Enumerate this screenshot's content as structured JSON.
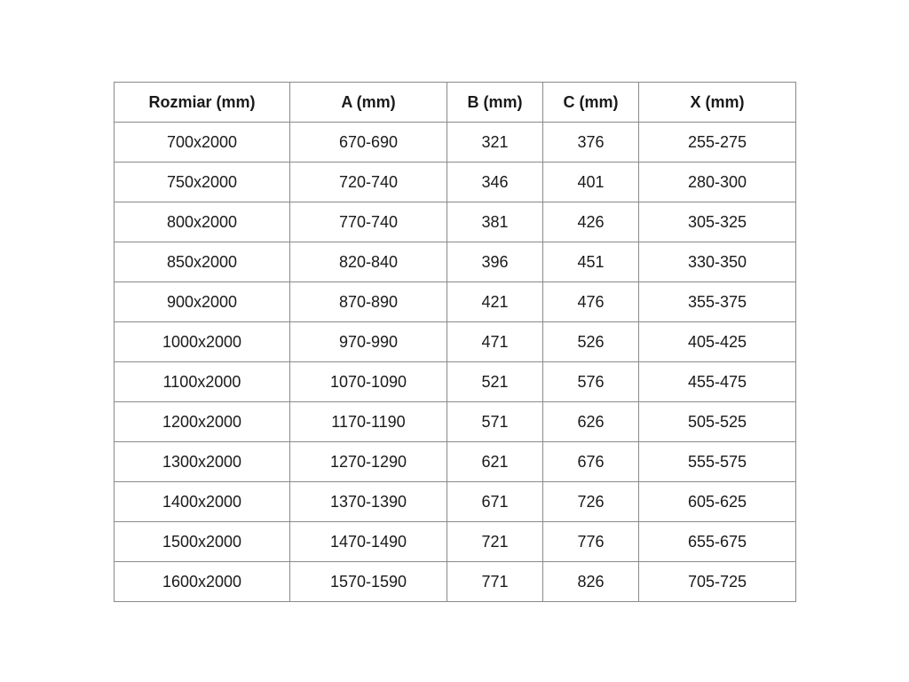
{
  "table": {
    "headers": [
      "Rozmiar (mm)",
      "A (mm)",
      "B (mm)",
      "C (mm)",
      "X (mm)"
    ],
    "rows": [
      [
        "700x2000",
        "670-690",
        "321",
        "376",
        "255-275"
      ],
      [
        "750x2000",
        "720-740",
        "346",
        "401",
        "280-300"
      ],
      [
        "800x2000",
        "770-740",
        "381",
        "426",
        "305-325"
      ],
      [
        "850x2000",
        "820-840",
        "396",
        "451",
        "330-350"
      ],
      [
        "900x2000",
        "870-890",
        "421",
        "476",
        "355-375"
      ],
      [
        "1000x2000",
        "970-990",
        "471",
        "526",
        "405-425"
      ],
      [
        "1100x2000",
        "1070-1090",
        "521",
        "576",
        "455-475"
      ],
      [
        "1200x2000",
        "1170-1190",
        "571",
        "626",
        "505-525"
      ],
      [
        "1300x2000",
        "1270-1290",
        "621",
        "676",
        "555-575"
      ],
      [
        "1400x2000",
        "1370-1390",
        "671",
        "726",
        "605-625"
      ],
      [
        "1500x2000",
        "1470-1490",
        "721",
        "776",
        "655-675"
      ],
      [
        "1600x2000",
        "1570-1590",
        "771",
        "826",
        "705-725"
      ]
    ]
  }
}
